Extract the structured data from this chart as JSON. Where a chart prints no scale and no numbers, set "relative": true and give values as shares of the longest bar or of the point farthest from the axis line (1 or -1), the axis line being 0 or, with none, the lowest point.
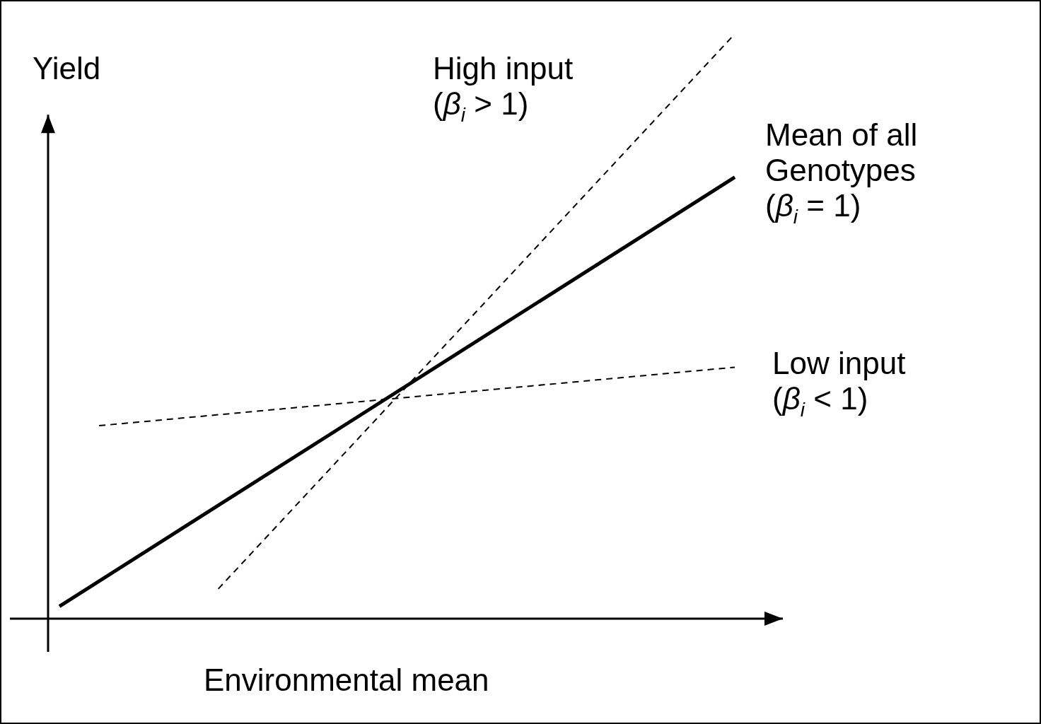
{
  "chart_data": {
    "type": "line",
    "relative": true,
    "xlabel": "Environmental mean",
    "ylabel": "Yield",
    "tick_labels": false,
    "marker": "none",
    "categories": [
      null,
      null,
      null,
      null,
      null,
      null,
      null,
      null,
      null,
      null,
      null,
      null,
      null,
      null,
      null,
      null,
      null,
      null
    ],
    "series": [
      {
        "name": "High input (β$_{i}$ > 1)",
        "color": "#000000",
        "line_style": "dashed",
        "values": [
          null,
          null,
          null,
          null,
          0.051,
          null,
          null,
          null,
          null,
          null,
          null,
          null,
          null,
          null,
          null,
          null,
          null,
          1.0
        ]
      },
      {
        "name": "Mean of all Genotypes (β$_{i}$ = 1)",
        "color": "#000000",
        "line_style": "solid",
        "values": [
          0.021,
          null,
          null,
          null,
          null,
          null,
          null,
          null,
          null,
          null,
          null,
          null,
          null,
          null,
          null,
          null,
          null,
          0.755
        ]
      },
      {
        "name": "Low input (β$_{i}$ < 1)",
        "color": "#000000",
        "line_style": "dashed",
        "values": [
          null,
          0.33,
          null,
          null,
          null,
          null,
          null,
          null,
          null,
          null,
          null,
          null,
          null,
          null,
          null,
          null,
          null,
          0.43
        ]
      }
    ]
  }
}
